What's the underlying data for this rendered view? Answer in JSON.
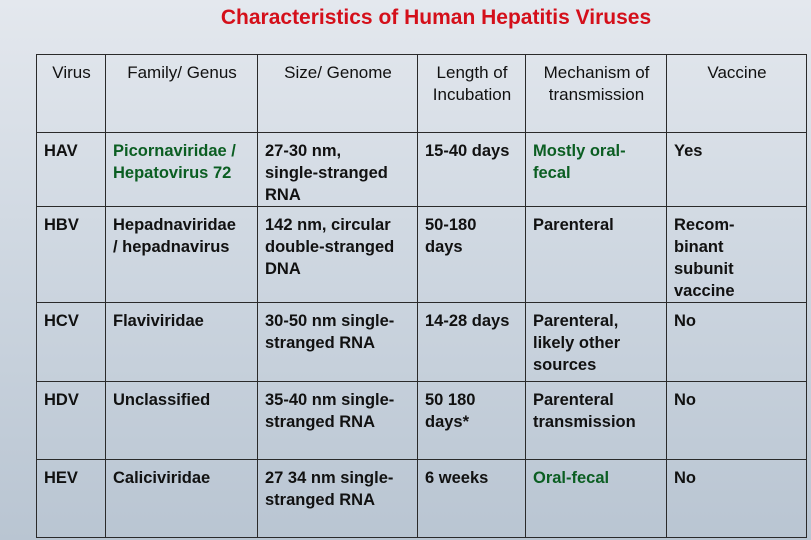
{
  "title": "Characteristics of Human Hepatitis Viruses",
  "table": {
    "header": [
      [
        "Virus"
      ],
      [
        "Family/ Genus"
      ],
      [
        "Size/ Genome"
      ],
      [
        "Length of",
        "Incubation"
      ],
      [
        "Mechanism of",
        "transmission"
      ],
      [
        "Vaccine"
      ]
    ],
    "rows": [
      [
        [
          "HAV"
        ],
        [
          "Picornaviridae /",
          "Hepatovirus 72"
        ],
        [
          "27-30 nm,",
          "single-stranged",
          "RNA"
        ],
        [
          "15-40 days"
        ],
        [
          "Mostly oral-",
          "fecal"
        ],
        [
          "Yes"
        ]
      ],
      [
        [
          "HBV"
        ],
        [
          "Hepadnaviridae",
          "/ hepadnavirus"
        ],
        [
          "142 nm, circular",
          "double-stranged",
          "DNA"
        ],
        [
          "50-180",
          "days"
        ],
        [
          "Parenteral"
        ],
        [
          "Recom-",
          "binant",
          "subunit",
          "vaccine"
        ]
      ],
      [
        [
          "HCV"
        ],
        [
          "Flaviviridae"
        ],
        [
          "30-50 nm single-",
          "stranged RNA"
        ],
        [
          "14-28 days"
        ],
        [
          "Parenteral,",
          "likely other",
          "sources"
        ],
        [
          "No"
        ]
      ],
      [
        [
          "HDV"
        ],
        [
          "Unclassified"
        ],
        [
          "35-40 nm single-",
          "stranged RNA"
        ],
        [
          "50 180",
          "days*"
        ],
        [
          "Parenteral",
          "transmission"
        ],
        [
          "No"
        ]
      ],
      [
        [
          "HEV"
        ],
        [
          "Caliciviridae"
        ],
        [
          "27 34 nm single-",
          "stranged RNA"
        ],
        [
          "6 weeks"
        ],
        [
          "Oral-fecal"
        ],
        [
          "No"
        ]
      ]
    ]
  }
}
